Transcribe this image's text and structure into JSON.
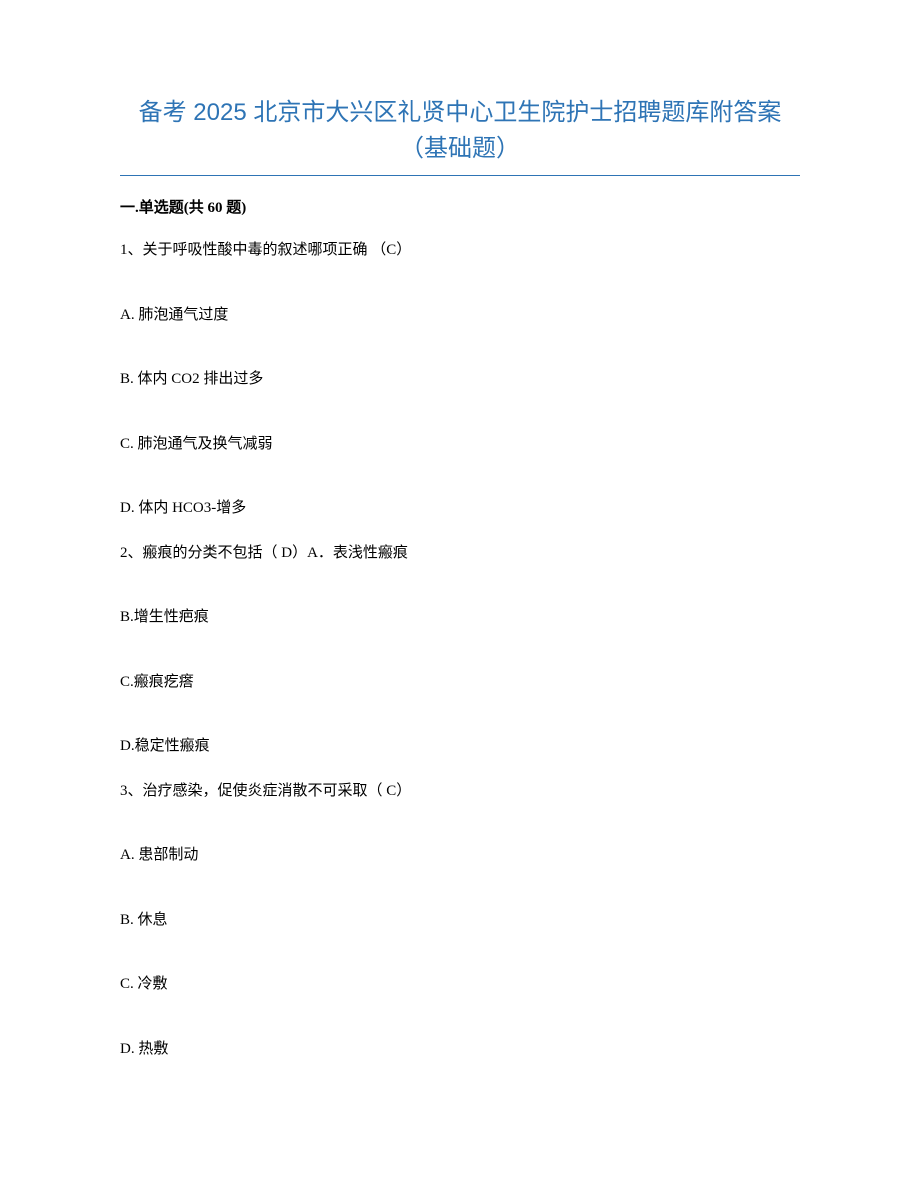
{
  "document": {
    "title": "备考 2025 北京市大兴区礼贤中心卫生院护士招聘题库附答案（基础题）",
    "title_color": "#2e74b5",
    "underline_color": "#2e74b5",
    "background_color": "#ffffff",
    "text_color": "#000000",
    "title_fontsize": 24,
    "body_fontsize": 15
  },
  "section": {
    "header": "一.单选题(共 60 题)"
  },
  "questions": [
    {
      "prompt": "1、关于呼吸性酸中毒的叙述哪项正确 （C）",
      "options": [
        "A. 肺泡通气过度",
        "B. 体内 CO2 排出过多",
        "C. 肺泡通气及换气减弱",
        "D. 体内 HCO3-增多"
      ]
    },
    {
      "prompt": "2、瘢痕的分类不包括（ D）A．表浅性瘢痕",
      "options": [
        "B.增生性疤痕",
        "C.瘢痕疙瘩",
        "D.稳定性瘢痕"
      ]
    },
    {
      "prompt": "3、治疗感染，促使炎症消散不可采取（ C）",
      "options": [
        "A. 患部制动",
        "B. 休息",
        "C. 冷敷",
        "D. 热敷"
      ]
    }
  ]
}
